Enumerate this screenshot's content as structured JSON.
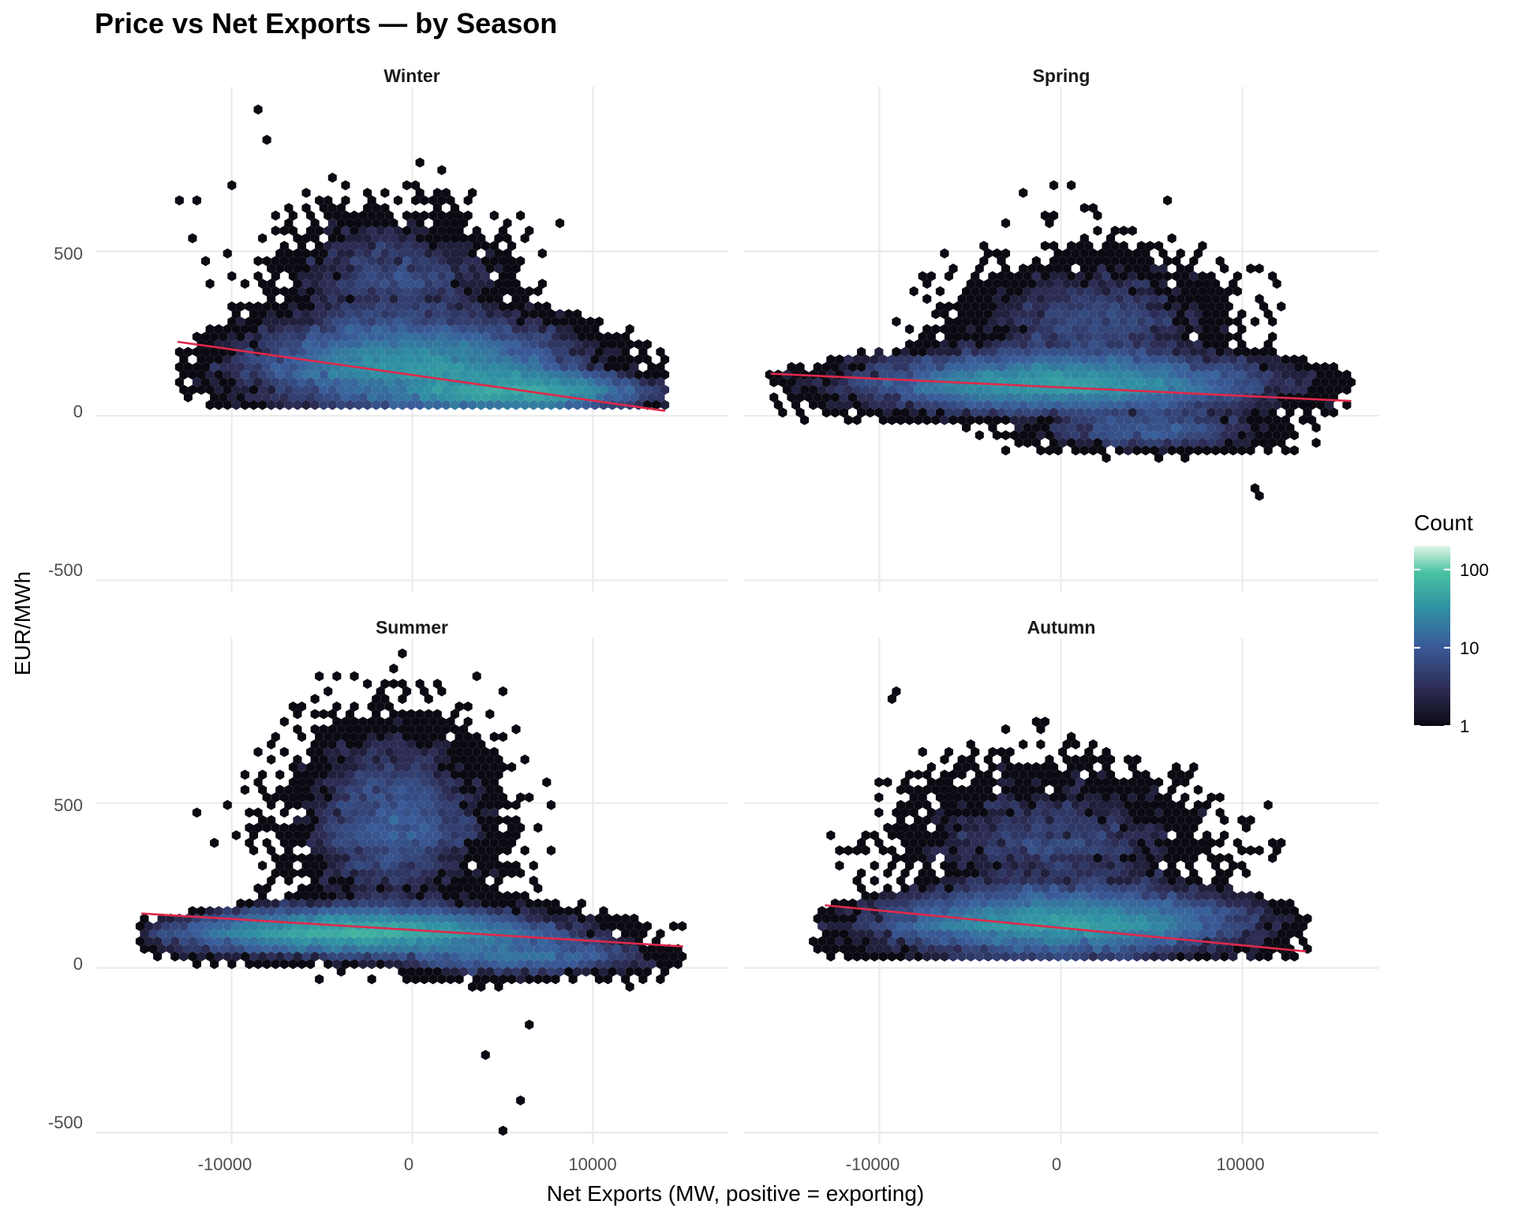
{
  "chart_data": {
    "type": "hexbin",
    "title": "Price vs Net Exports — by Season",
    "xlabel": "Net Exports (MW, positive = exporting)",
    "ylabel": "EUR/MWh",
    "xlim": [
      -17500,
      17500
    ],
    "ylim": [
      -535,
      1000
    ],
    "x_ticks": [
      -10000,
      0,
      10000
    ],
    "x_tick_labels": [
      "-10000",
      "0",
      "10000"
    ],
    "y_ticks": [
      -500,
      0,
      500
    ],
    "y_tick_labels": [
      "-500",
      "0",
      "500"
    ],
    "legend": {
      "title": "Count",
      "scale": "log10",
      "range": [
        1,
        200
      ],
      "ticks": [
        1,
        10,
        100
      ],
      "tick_labels": [
        "1",
        "10",
        "100"
      ],
      "colors": {
        "low": "#0b0a12",
        "mid_low": "#2c2b52",
        "mid": "#3a5c9a",
        "mid_high": "#2f8fa3",
        "high": "#48c2a0",
        "top": "#def5e5"
      }
    },
    "panels": [
      {
        "name": "Winter",
        "fit_line": {
          "x": [
            -13000,
            14000
          ],
          "y": [
            225,
            15
          ]
        },
        "clusters": [
          {
            "cx": 0,
            "sx": 4500,
            "cy": 120,
            "sy": 90,
            "n": 1400,
            "xmin": -13000,
            "xmax": 14000,
            "base": 30
          },
          {
            "cx": 6000,
            "sx": 3500,
            "cy": 60,
            "sy": 40,
            "n": 700,
            "xmin": -13000,
            "xmax": 14000,
            "base": 30
          },
          {
            "cx": -1000,
            "sx": 2800,
            "cy": 380,
            "sy": 110,
            "n": 200,
            "xmin": -13000,
            "xmax": 14000,
            "base": 30
          }
        ],
        "outliers": [
          [
            -8500,
            930
          ],
          [
            -8000,
            830
          ],
          [
            -13000,
            660
          ],
          [
            -12000,
            660
          ],
          [
            -10000,
            690
          ],
          [
            -10000,
            330
          ],
          [
            -9000,
            330
          ],
          [
            -9500,
            290
          ],
          [
            -7000,
            580
          ],
          [
            -11000,
            390
          ],
          [
            -8000,
            470
          ],
          [
            -11500,
            470
          ],
          [
            -12000,
            540
          ],
          [
            -9500,
            400
          ]
        ]
      },
      {
        "name": "Spring",
        "fit_line": {
          "x": [
            -16000,
            16000
          ],
          "y": [
            128,
            45
          ]
        },
        "clusters": [
          {
            "cx": 0,
            "sx": 5500,
            "cy": 75,
            "sy": 60,
            "n": 1400,
            "xmin": -16000,
            "xmax": 16000,
            "base": -20
          },
          {
            "cx": 2000,
            "sx": 3200,
            "cy": 260,
            "sy": 100,
            "n": 220,
            "xmin": -16000,
            "xmax": 16000,
            "base": -20
          },
          {
            "cx": 5000,
            "sx": 3000,
            "cy": -60,
            "sy": 40,
            "n": 140,
            "xmin": -16000,
            "xmax": 16000,
            "base": -150
          }
        ],
        "outliers": [
          [
            -500,
            695
          ],
          [
            500,
            695
          ],
          [
            -2000,
            670
          ],
          [
            1500,
            640
          ],
          [
            -1000,
            620
          ],
          [
            2000,
            600
          ],
          [
            6000,
            550
          ],
          [
            3000,
            560
          ],
          [
            11000,
            -240
          ],
          [
            10500,
            -230
          ],
          [
            6000,
            660
          ],
          [
            -3000,
            590
          ]
        ]
      },
      {
        "name": "Summer",
        "fit_line": {
          "x": [
            -15000,
            15000
          ],
          "y": [
            165,
            65
          ]
        },
        "clusters": [
          {
            "cx": -3000,
            "sx": 5000,
            "cy": 90,
            "sy": 45,
            "n": 1400,
            "xmin": -15000,
            "xmax": 15000,
            "base": 0
          },
          {
            "cx": -1000,
            "sx": 2500,
            "cy": 380,
            "sy": 160,
            "n": 450,
            "xmin": -15000,
            "xmax": 15000,
            "base": 0
          },
          {
            "cx": 6000,
            "sx": 3500,
            "cy": 20,
            "sy": 40,
            "n": 250,
            "xmin": -15000,
            "xmax": 15000,
            "base": -100
          }
        ],
        "outliers": [
          [
            5000,
            -500
          ],
          [
            6000,
            -400
          ],
          [
            4000,
            -270
          ],
          [
            6500,
            -170
          ],
          [
            -12000,
            475
          ],
          [
            -9000,
            410
          ],
          [
            -5000,
            880
          ],
          [
            -4000,
            880
          ],
          [
            -2000,
            850
          ],
          [
            -6500,
            760
          ]
        ]
      },
      {
        "name": "Autumn",
        "fit_line": {
          "x": [
            -13000,
            13500
          ],
          "y": [
            190,
            50
          ]
        },
        "clusters": [
          {
            "cx": 0,
            "sx": 5000,
            "cy": 110,
            "sy": 65,
            "n": 1400,
            "xmin": -13500,
            "xmax": 13500,
            "base": 25
          },
          {
            "cx": -500,
            "sx": 3800,
            "cy": 340,
            "sy": 120,
            "n": 260,
            "xmin": -13500,
            "xmax": 13500,
            "base": 25
          }
        ],
        "outliers": [
          [
            -9500,
            820
          ],
          [
            -9000,
            830
          ],
          [
            -7700,
            665
          ],
          [
            -1500,
            740
          ],
          [
            -1000,
            680
          ],
          [
            1000,
            680
          ],
          [
            2000,
            640
          ],
          [
            -3500,
            620
          ],
          [
            -4500,
            620
          ],
          [
            -10000,
            560
          ],
          [
            6000,
            580
          ],
          [
            8500,
            300
          ]
        ]
      }
    ]
  }
}
